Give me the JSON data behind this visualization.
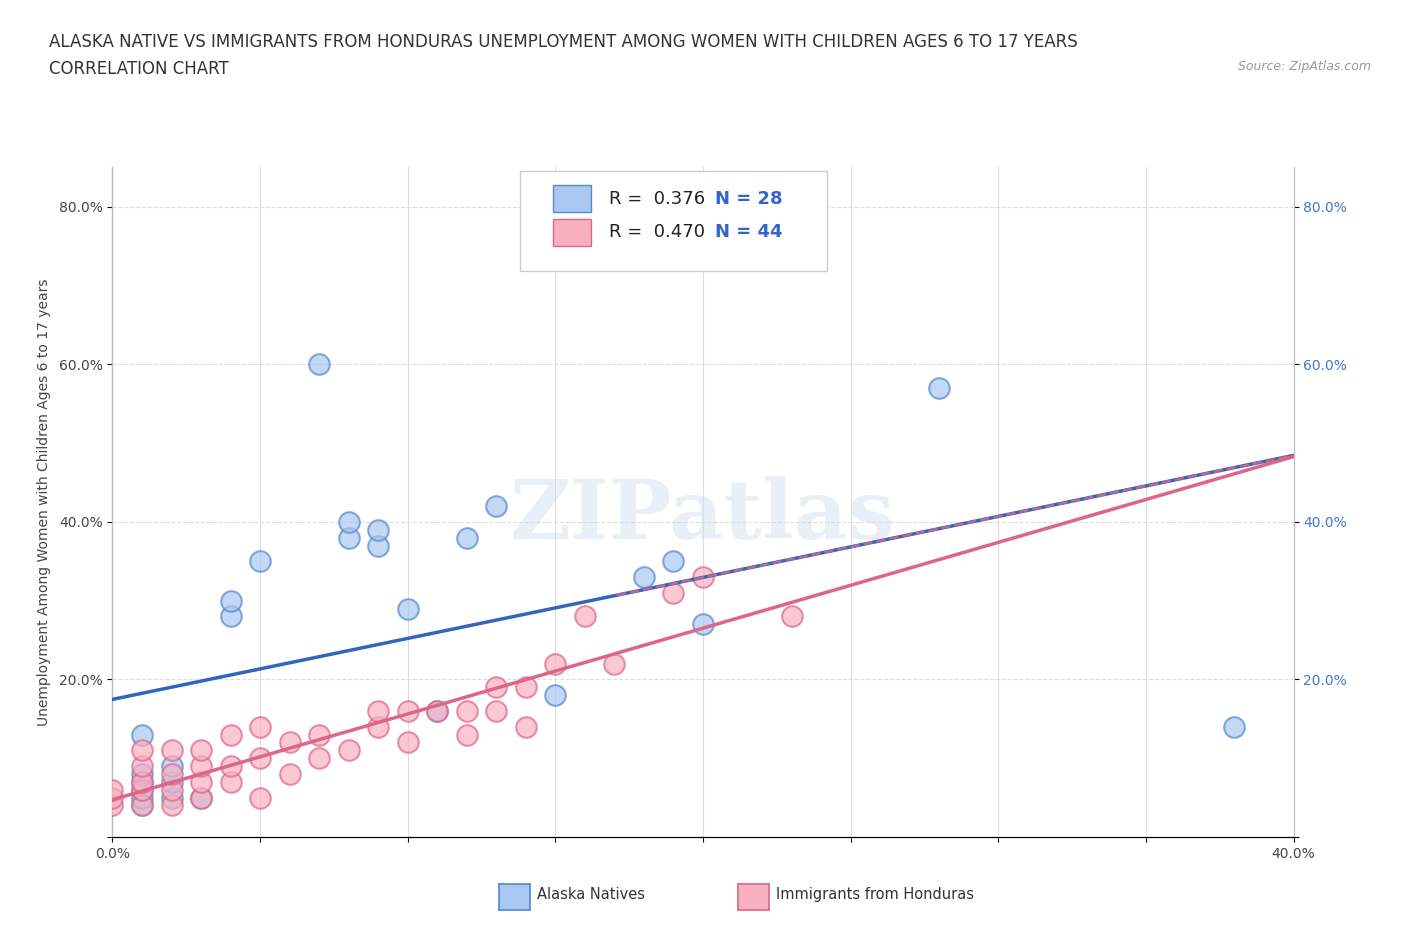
{
  "title_line1": "ALASKA NATIVE VS IMMIGRANTS FROM HONDURAS UNEMPLOYMENT AMONG WOMEN WITH CHILDREN AGES 6 TO 17 YEARS",
  "title_line2": "CORRELATION CHART",
  "source_text": "Source: ZipAtlas.com",
  "ylabel": "Unemployment Among Women with Children Ages 6 to 17 years",
  "xlim": [
    0.0,
    0.4
  ],
  "ylim": [
    0.0,
    0.85
  ],
  "x_ticks": [
    0.0,
    0.05,
    0.1,
    0.15,
    0.2,
    0.25,
    0.3,
    0.35,
    0.4
  ],
  "x_tick_labels": [
    "0.0%",
    "",
    "",
    "",
    "",
    "",
    "",
    "",
    "40.0%"
  ],
  "y_ticks": [
    0.0,
    0.2,
    0.4,
    0.6,
    0.8
  ],
  "y_tick_labels": [
    "",
    "20.0%",
    "40.0%",
    "60.0%",
    "80.0%"
  ],
  "grid_color": "#dddddd",
  "background_color": "#ffffff",
  "alaska_color": "#a8c8f0",
  "alaska_edge_color": "#5588cc",
  "honduras_color": "#f8b0c0",
  "honduras_edge_color": "#dd6688",
  "alaska_line_color": "#3366bb",
  "honduras_line_color": "#dd6688",
  "watermark": "ZIPatlas",
  "alaska_x": [
    0.01,
    0.01,
    0.01,
    0.01,
    0.01,
    0.01,
    0.02,
    0.02,
    0.02,
    0.03,
    0.04,
    0.04,
    0.05,
    0.07,
    0.08,
    0.08,
    0.09,
    0.09,
    0.1,
    0.11,
    0.12,
    0.13,
    0.15,
    0.18,
    0.19,
    0.2,
    0.28,
    0.38
  ],
  "alaska_y": [
    0.04,
    0.05,
    0.06,
    0.07,
    0.08,
    0.13,
    0.05,
    0.07,
    0.09,
    0.05,
    0.28,
    0.3,
    0.35,
    0.6,
    0.38,
    0.4,
    0.37,
    0.39,
    0.29,
    0.16,
    0.38,
    0.42,
    0.18,
    0.33,
    0.35,
    0.27,
    0.57,
    0.14
  ],
  "honduras_x": [
    0.0,
    0.0,
    0.0,
    0.01,
    0.01,
    0.01,
    0.01,
    0.01,
    0.02,
    0.02,
    0.02,
    0.02,
    0.03,
    0.03,
    0.03,
    0.03,
    0.04,
    0.04,
    0.04,
    0.05,
    0.05,
    0.05,
    0.06,
    0.06,
    0.07,
    0.07,
    0.08,
    0.09,
    0.09,
    0.1,
    0.1,
    0.11,
    0.12,
    0.12,
    0.13,
    0.13,
    0.14,
    0.14,
    0.15,
    0.16,
    0.17,
    0.19,
    0.2,
    0.23
  ],
  "honduras_y": [
    0.04,
    0.05,
    0.06,
    0.04,
    0.06,
    0.07,
    0.09,
    0.11,
    0.04,
    0.06,
    0.08,
    0.11,
    0.05,
    0.07,
    0.09,
    0.11,
    0.07,
    0.09,
    0.13,
    0.05,
    0.1,
    0.14,
    0.08,
    0.12,
    0.1,
    0.13,
    0.11,
    0.14,
    0.16,
    0.12,
    0.16,
    0.16,
    0.13,
    0.16,
    0.16,
    0.19,
    0.14,
    0.19,
    0.22,
    0.28,
    0.22,
    0.31,
    0.33,
    0.28
  ],
  "title_fontsize": 12,
  "axis_label_fontsize": 10,
  "tick_fontsize": 10,
  "legend_fontsize": 13
}
